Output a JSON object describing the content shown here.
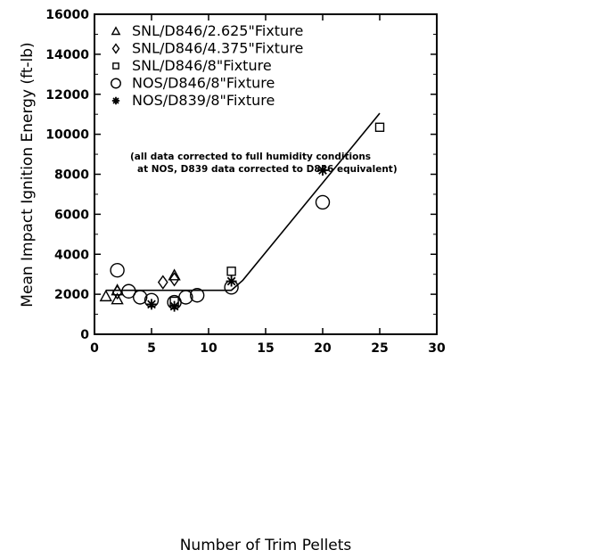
{
  "chart_data": {
    "type": "scatter",
    "title": "",
    "xlabel": "Number of Trim Pellets",
    "ylabel": "Mean Impact Ignition Energy  (ft-lb)",
    "xlim": [
      0,
      30
    ],
    "ylim": [
      0,
      16000
    ],
    "x_ticks": [
      0,
      5,
      10,
      15,
      20,
      25,
      30
    ],
    "y_ticks": [
      0,
      2000,
      4000,
      6000,
      8000,
      10000,
      12000,
      14000,
      16000
    ],
    "grid": false,
    "legend_position": "top-left",
    "note_lines": [
      "(all data corrected to full humidity conditions",
      "at NOS, D839 data corrected to D846 equivalent)"
    ],
    "series": [
      {
        "name": "SNL/D846/2.625\"Fixture",
        "marker": "triangle",
        "points": [
          [
            1,
            1900
          ],
          [
            2,
            1750
          ],
          [
            2,
            2200
          ],
          [
            7,
            2950
          ]
        ]
      },
      {
        "name": "SNL/D846/4.375\"Fixture",
        "marker": "diamond",
        "points": [
          [
            2,
            2100
          ],
          [
            6,
            2600
          ],
          [
            7,
            2750
          ]
        ]
      },
      {
        "name": "SNL/D846/8\"Fixture",
        "marker": "square",
        "points": [
          [
            7,
            1650
          ],
          [
            12,
            3150
          ],
          [
            25,
            10350
          ]
        ]
      },
      {
        "name": "NOS/D846/8\"Fixture",
        "marker": "circle",
        "points": [
          [
            2,
            3200
          ],
          [
            3,
            2150
          ],
          [
            4,
            1850
          ],
          [
            5,
            1700
          ],
          [
            7,
            1600
          ],
          [
            8,
            1850
          ],
          [
            9,
            1950
          ],
          [
            12,
            2350
          ],
          [
            20,
            6600
          ]
        ]
      },
      {
        "name": "NOS/D839/8\"Fixture",
        "marker": "asterisk",
        "points": [
          [
            5,
            1500
          ],
          [
            7,
            1400
          ],
          [
            12,
            2650
          ],
          [
            20,
            8200
          ]
        ]
      }
    ],
    "fit_line": [
      [
        1,
        2200
      ],
      [
        12,
        2200
      ],
      [
        13,
        2700
      ],
      [
        25,
        11050
      ]
    ]
  }
}
